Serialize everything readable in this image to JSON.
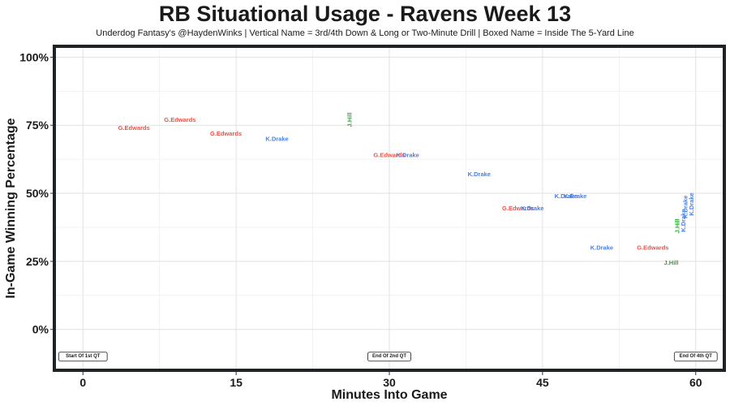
{
  "chart_data": {
    "type": "scatter",
    "title": "RB Situational Usage - Ravens Week 13",
    "subtitle": "Underdog Fantasy's @HaydenWinks | Vertical Name = 3rd/4th Down & Long or Two-Minute Drill | Boxed Name = Inside The 5-Yard Line",
    "xlabel": "Minutes Into Game",
    "ylabel": "In-Game Winning Percentage",
    "xlim": [
      -2.8,
      62.8
    ],
    "ylim": [
      -15,
      104
    ],
    "x_ticks": [
      0,
      15,
      30,
      45,
      60
    ],
    "x_tick_labels": [
      "0",
      "15",
      "30",
      "45",
      "60"
    ],
    "y_ticks": [
      0,
      25,
      50,
      75,
      100
    ],
    "y_tick_labels": [
      "0%",
      "25%",
      "50%",
      "75%",
      "100%"
    ],
    "grid": true,
    "legend": "none",
    "colors": {
      "G.Edwards": "#e8534a",
      "K.Drake": "#4a7fe0",
      "J.Hill": "#2ea836"
    },
    "points": [
      {
        "name": "G.Edwards",
        "x": 5.0,
        "y": 74,
        "vertical": false
      },
      {
        "name": "G.Edwards",
        "x": 9.5,
        "y": 77,
        "vertical": false
      },
      {
        "name": "G.Edwards",
        "x": 14.0,
        "y": 72,
        "vertical": false
      },
      {
        "name": "K.Drake",
        "x": 19.0,
        "y": 70,
        "vertical": false
      },
      {
        "name": "J.Hill",
        "x": 26.1,
        "y": 77,
        "vertical": true
      },
      {
        "name": "G.Edwards",
        "x": 30.0,
        "y": 64,
        "vertical": false
      },
      {
        "name": "K.Drake",
        "x": 31.8,
        "y": 64,
        "vertical": false
      },
      {
        "name": "K.Drake",
        "x": 38.8,
        "y": 57,
        "vertical": false
      },
      {
        "name": "G.Edwards",
        "x": 42.6,
        "y": 44.5,
        "vertical": false
      },
      {
        "name": "K.Drake",
        "x": 44.0,
        "y": 44.5,
        "vertical": false
      },
      {
        "name": "K.Drake",
        "x": 47.3,
        "y": 49,
        "vertical": false
      },
      {
        "name": "K.Drake",
        "x": 48.2,
        "y": 49,
        "vertical": false
      },
      {
        "name": "K.Drake",
        "x": 50.8,
        "y": 30,
        "vertical": false
      },
      {
        "name": "G.Edwards",
        "x": 55.8,
        "y": 30,
        "vertical": false
      },
      {
        "name": "J.Hill",
        "x": 57.6,
        "y": 24.5,
        "vertical": false
      },
      {
        "name": "J.Hill",
        "x": 58.2,
        "y": 38,
        "vertical": true
      },
      {
        "name": "K.Drake",
        "x": 58.8,
        "y": 40,
        "vertical": true
      },
      {
        "name": "K.Drake",
        "x": 59.0,
        "y": 45,
        "vertical": true
      },
      {
        "name": "K.Drake",
        "x": 59.6,
        "y": 46,
        "vertical": true
      }
    ],
    "annotations": [
      {
        "text": "Start Of 1st QT",
        "x": 0.0,
        "y": -10
      },
      {
        "text": "End Of 2nd QT",
        "x": 30.0,
        "y": -10
      },
      {
        "text": "End Of 4th QT",
        "x": 60.0,
        "y": -10
      }
    ]
  }
}
